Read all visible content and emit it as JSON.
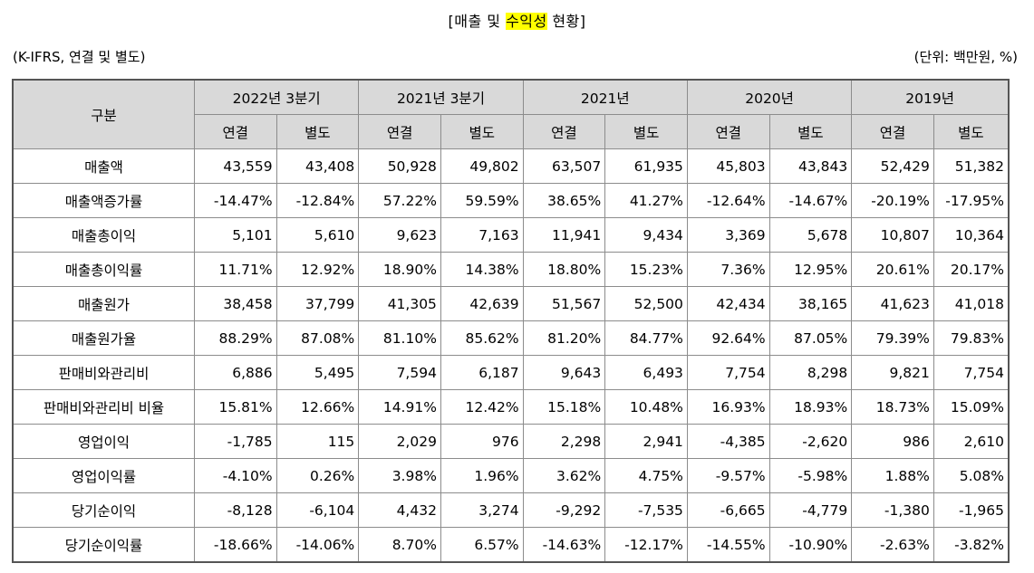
{
  "title": {
    "prefix": "[매출 및 ",
    "highlight": "수익성",
    "suffix": " 현황]"
  },
  "subtitle_left": "(K-IFRS, 연결 및 별도)",
  "unit": "(단위: 백만원, %)",
  "header": {
    "corner": "구분",
    "periods": [
      "2022년 3분기",
      "2021년 3분기",
      "2021년",
      "2020년",
      "2019년"
    ],
    "sub": [
      "연결",
      "별도"
    ]
  },
  "rows": [
    {
      "label": "매출액",
      "values": [
        "43,559",
        "43,408",
        "50,928",
        "49,802",
        "63,507",
        "61,935",
        "45,803",
        "43,843",
        "52,429",
        "51,382"
      ]
    },
    {
      "label": "매출액증가률",
      "values": [
        "-14.47%",
        "-12.84%",
        "57.22%",
        "59.59%",
        "38.65%",
        "41.27%",
        "-12.64%",
        "-14.67%",
        "-20.19%",
        "-17.95%"
      ]
    },
    {
      "label": "매출총이익",
      "values": [
        "5,101",
        "5,610",
        "9,623",
        "7,163",
        "11,941",
        "9,434",
        "3,369",
        "5,678",
        "10,807",
        "10,364"
      ]
    },
    {
      "label": "매출총이익률",
      "values": [
        "11.71%",
        "12.92%",
        "18.90%",
        "14.38%",
        "18.80%",
        "15.23%",
        "7.36%",
        "12.95%",
        "20.61%",
        "20.17%"
      ]
    },
    {
      "label": "매출원가",
      "values": [
        "38,458",
        "37,799",
        "41,305",
        "42,639",
        "51,567",
        "52,500",
        "42,434",
        "38,165",
        "41,623",
        "41,018"
      ]
    },
    {
      "label": "매출원가율",
      "values": [
        "88.29%",
        "87.08%",
        "81.10%",
        "85.62%",
        "81.20%",
        "84.77%",
        "92.64%",
        "87.05%",
        "79.39%",
        "79.83%"
      ]
    },
    {
      "label": "판매비와관리비",
      "values": [
        "6,886",
        "5,495",
        "7,594",
        "6,187",
        "9,643",
        "6,493",
        "7,754",
        "8,298",
        "9,821",
        "7,754"
      ]
    },
    {
      "label": "판매비와관리비 비율",
      "values": [
        "15.81%",
        "12.66%",
        "14.91%",
        "12.42%",
        "15.18%",
        "10.48%",
        "16.93%",
        "18.93%",
        "18.73%",
        "15.09%"
      ]
    },
    {
      "label": "영업이익",
      "values": [
        "-1,785",
        "115",
        "2,029",
        "976",
        "2,298",
        "2,941",
        "-4,385",
        "-2,620",
        "986",
        "2,610"
      ]
    },
    {
      "label": "영업이익률",
      "values": [
        "-4.10%",
        "0.26%",
        "3.98%",
        "1.96%",
        "3.62%",
        "4.75%",
        "-9.57%",
        "-5.98%",
        "1.88%",
        "5.08%"
      ]
    },
    {
      "label": "당기순이익",
      "values": [
        "-8,128",
        "-6,104",
        "4,432",
        "3,274",
        "-9,292",
        "-7,535",
        "-6,665",
        "-4,779",
        "-1,380",
        "-1,965"
      ]
    },
    {
      "label": "당기순이익률",
      "values": [
        "-18.66%",
        "-14.06%",
        "8.70%",
        "6.57%",
        "-14.63%",
        "-12.17%",
        "-14.55%",
        "-10.90%",
        "-2.63%",
        "-3.82%"
      ]
    }
  ]
}
